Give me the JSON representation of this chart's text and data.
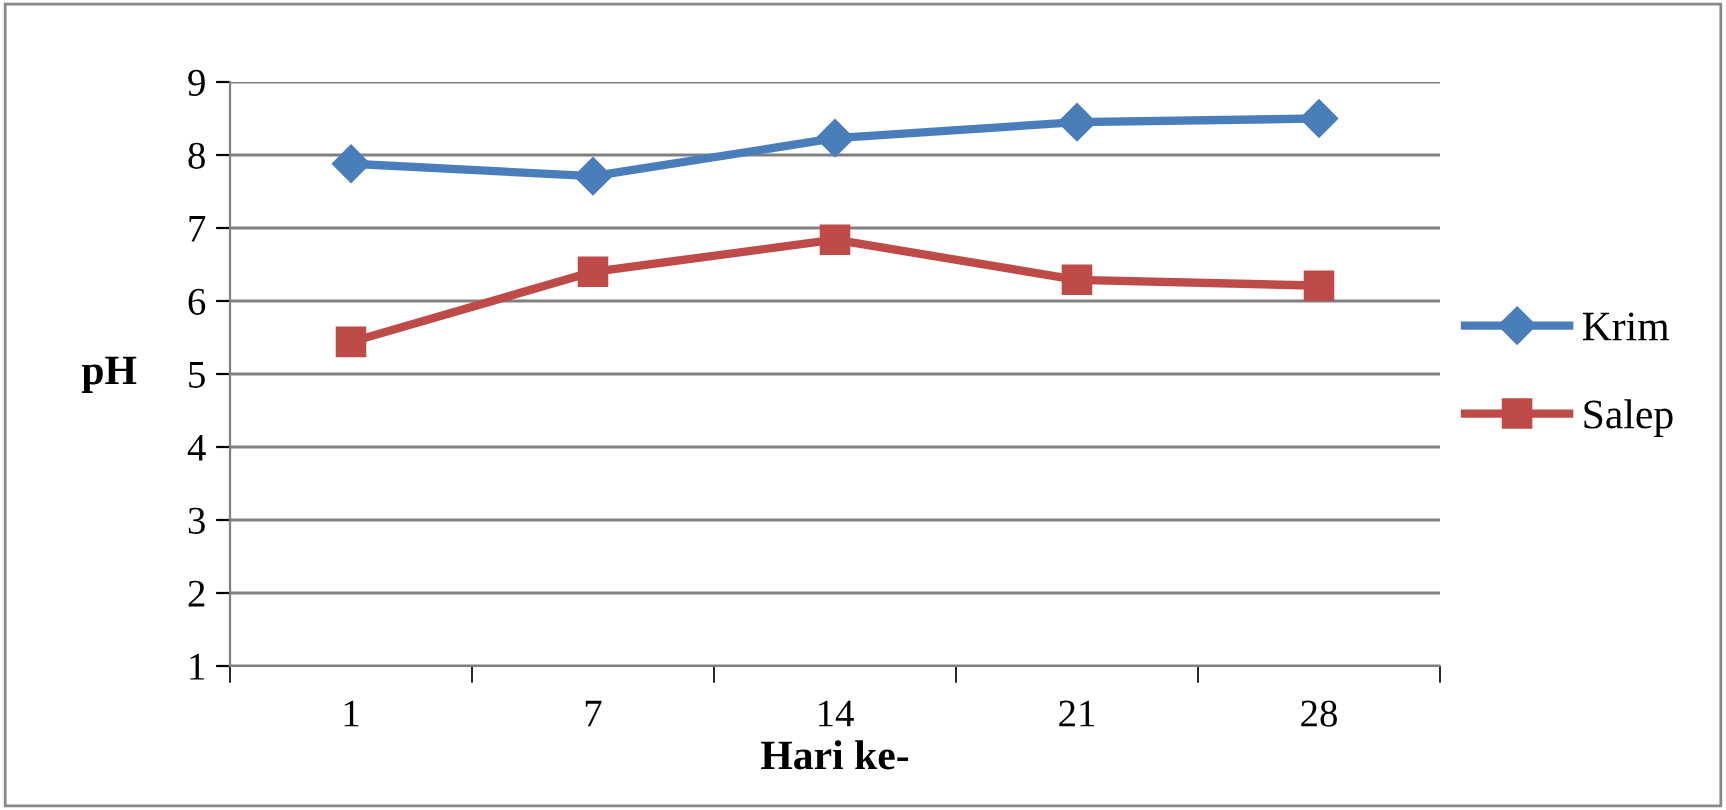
{
  "chart_data": {
    "type": "line",
    "xlabel": "Hari ke-",
    "ylabel": "pH",
    "categories": [
      "1",
      "7",
      "14",
      "21",
      "28"
    ],
    "series": [
      {
        "name": "Krim",
        "color": "#4a7ebb",
        "marker": "diamond",
        "values": [
          7.88,
          7.71,
          8.23,
          8.45,
          8.5
        ]
      },
      {
        "name": "Salep",
        "color": "#be4b48",
        "marker": "square",
        "values": [
          5.44,
          6.4,
          6.84,
          6.29,
          6.21
        ]
      }
    ],
    "ylim": [
      1,
      9
    ],
    "yticks": [
      1,
      2,
      3,
      4,
      5,
      6,
      7,
      8,
      9
    ],
    "grid": "y",
    "legend": "right",
    "line_style": "solid"
  }
}
